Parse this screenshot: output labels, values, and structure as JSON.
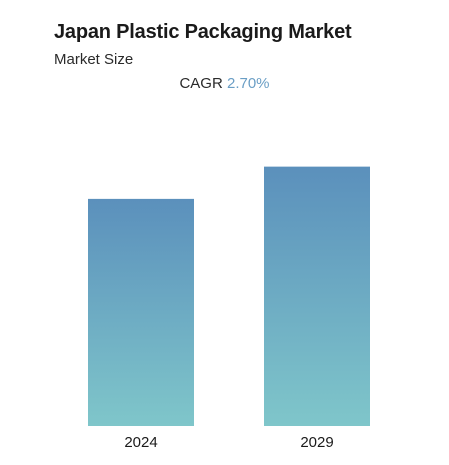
{
  "chart_data": {
    "type": "bar",
    "title": "Japan Plastic Packaging Market",
    "subtitle": "Market Size",
    "cagr_label": "CAGR",
    "cagr_value": "2.70%",
    "categories": [
      "2024",
      "2029"
    ],
    "values": [
      100,
      114.2
    ],
    "ylim": [
      0,
      118
    ],
    "xlabel": "",
    "ylabel": "",
    "grid": false,
    "legend": "none",
    "colors": {
      "bar_top": "#5b90bc",
      "bar_bottom": "#7fc6ca",
      "cagr_accent": "#6a9ec5"
    }
  }
}
